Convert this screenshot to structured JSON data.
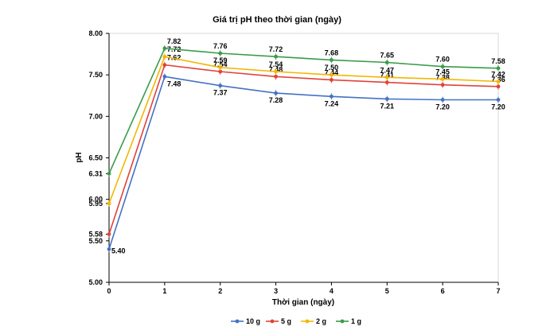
{
  "chart_data": {
    "type": "line",
    "title": "Giá trị pH theo thời gian (ngày)",
    "xlabel": "Thời gian (ngày)",
    "ylabel": "pH",
    "x": [
      0,
      1,
      2,
      3,
      4,
      5,
      6,
      7
    ],
    "xlim": [
      0,
      7
    ],
    "ylim": [
      5.0,
      8.0
    ],
    "y_ticks": [
      "5.00",
      "5.50",
      "6.00",
      "6.50",
      "7.00",
      "7.50",
      "8.00"
    ],
    "y_extra_ticks": [
      "5.58",
      "5.95",
      "6.31"
    ],
    "x_ticks": [
      "0",
      "1",
      "2",
      "3",
      "4",
      "5",
      "6",
      "7"
    ],
    "grid": false,
    "legend_position": "bottom",
    "series": [
      {
        "name": "10 g",
        "color": "#4472C4",
        "values": [
          5.4,
          7.48,
          7.37,
          7.28,
          7.24,
          7.21,
          7.2,
          7.2
        ],
        "labels": [
          "5.40",
          "7.48",
          "7.37",
          "7.28",
          "7.24",
          "7.21",
          "7.20",
          "7.20"
        ]
      },
      {
        "name": "5 g",
        "color": "#E0433A",
        "values": [
          5.58,
          7.62,
          7.54,
          7.48,
          7.44,
          7.41,
          7.38,
          7.36
        ],
        "labels": [
          "",
          "7.62",
          "7.54",
          "7.48",
          "7.44",
          "7.41",
          "7.38",
          "7.36"
        ]
      },
      {
        "name": "2 g",
        "color": "#F2B705",
        "values": [
          5.95,
          7.72,
          7.59,
          7.54,
          7.5,
          7.47,
          7.45,
          7.42
        ],
        "labels": [
          "",
          "7.72",
          "7.59",
          "7.54",
          "7.50",
          "7.47",
          "7.45",
          "7.42"
        ]
      },
      {
        "name": "1 g",
        "color": "#3A9B4A",
        "values": [
          6.31,
          7.82,
          7.76,
          7.72,
          7.68,
          7.65,
          7.6,
          7.58
        ],
        "labels": [
          "",
          "7.82",
          "7.76",
          "7.72",
          "7.68",
          "7.65",
          "7.60",
          "7.58"
        ]
      }
    ]
  }
}
